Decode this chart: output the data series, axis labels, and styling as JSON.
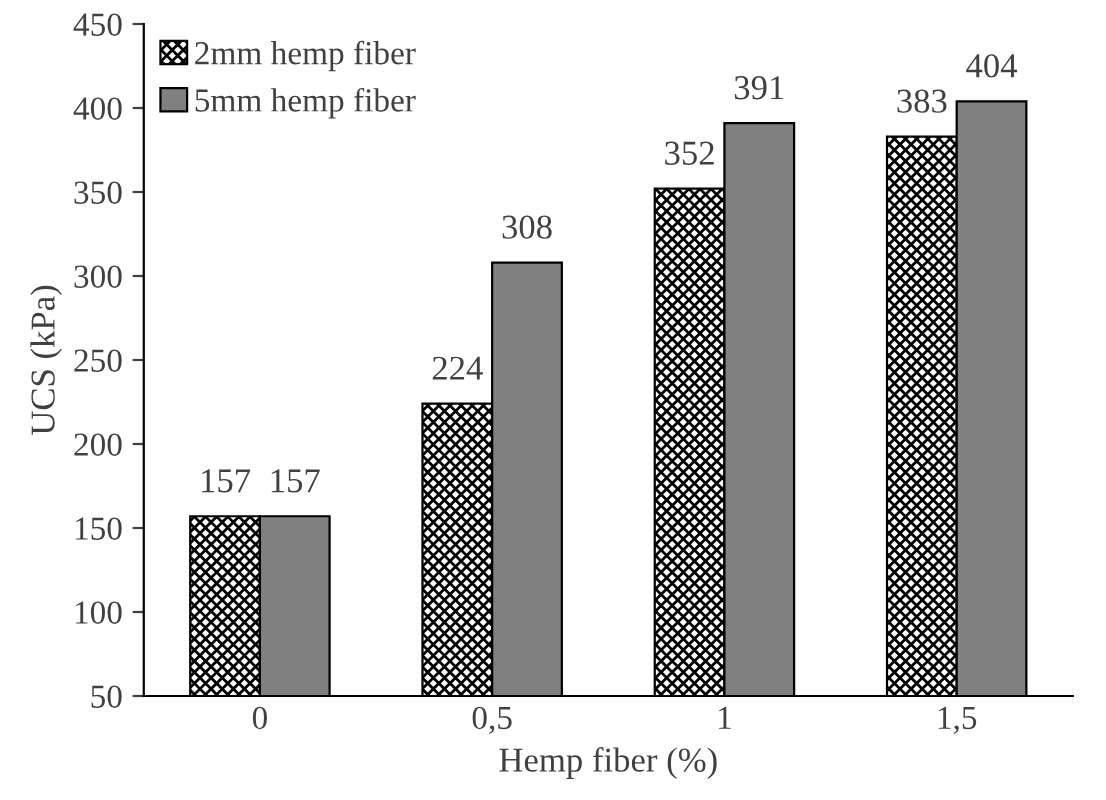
{
  "chart_data": {
    "type": "bar",
    "xlabel": "Hemp fiber (%)",
    "ylabel": "UCS (kPa)",
    "categories": [
      "0",
      "0,5",
      "1",
      "1,5"
    ],
    "series": [
      {
        "name": "2mm hemp fiber",
        "color": "#000000",
        "values": [
          157,
          224,
          352,
          383
        ]
      },
      {
        "name": "5mm hemp fiber",
        "color": "#808080",
        "values": [
          157,
          308,
          391,
          404
        ]
      }
    ],
    "ylim": [
      50,
      450
    ],
    "yticks": [
      50,
      100,
      150,
      200,
      250,
      300,
      350,
      400,
      450
    ],
    "data_labels": true,
    "legend": "top left",
    "grid": false
  }
}
